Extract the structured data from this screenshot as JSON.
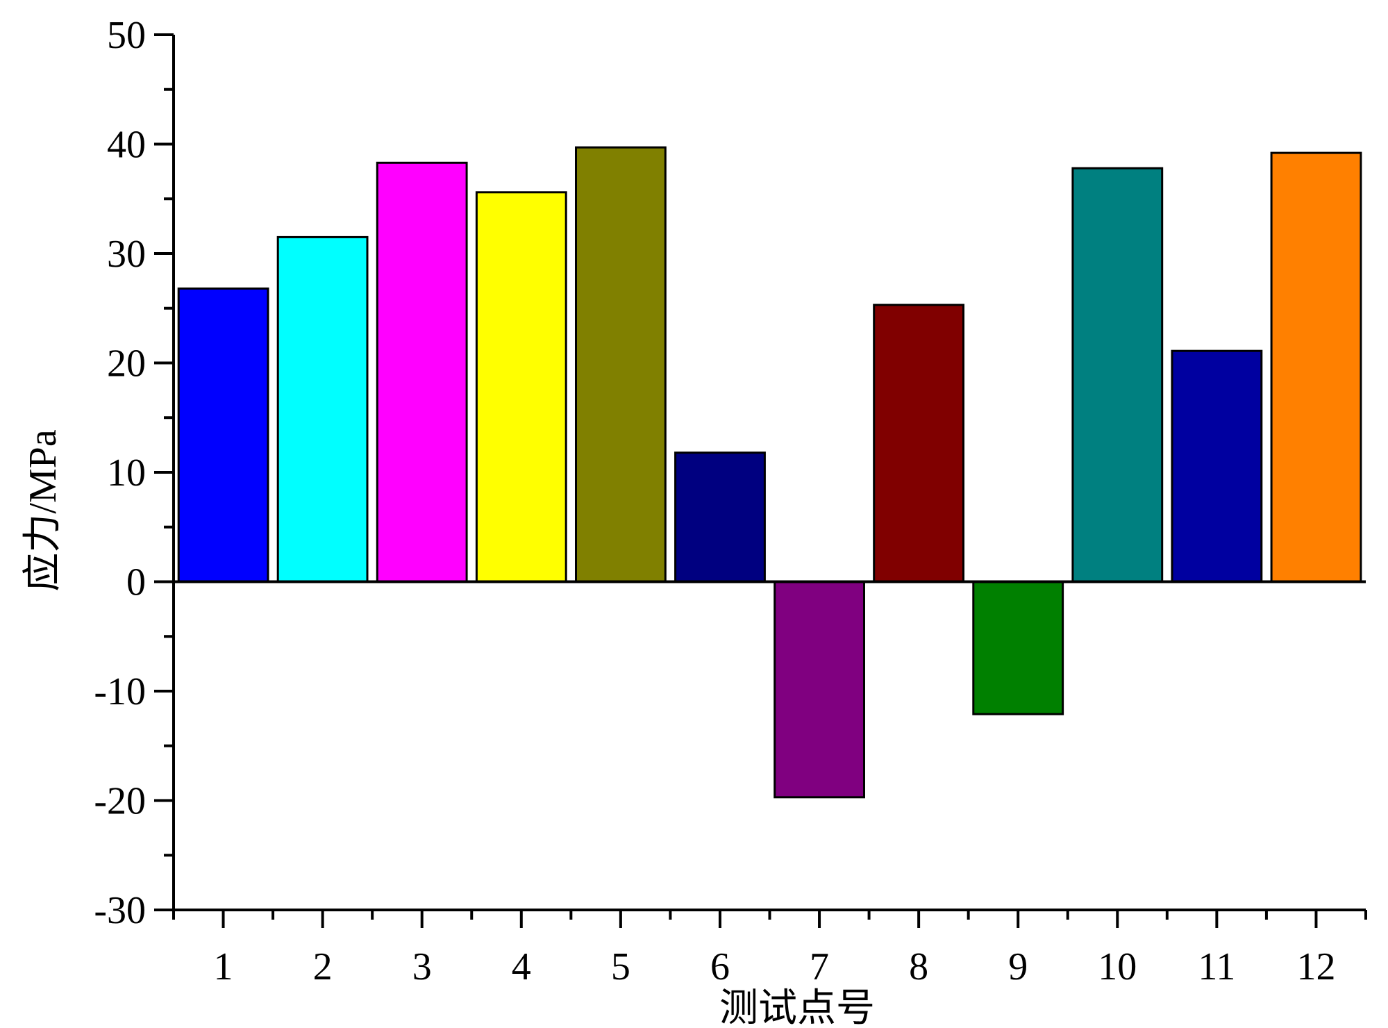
{
  "chart_data": {
    "type": "bar",
    "categories": [
      "1",
      "2",
      "3",
      "4",
      "5",
      "6",
      "7",
      "8",
      "9",
      "10",
      "11",
      "12"
    ],
    "values": [
      26.8,
      31.5,
      38.3,
      35.6,
      39.7,
      11.8,
      -19.7,
      25.3,
      -12.1,
      37.8,
      21.1,
      39.2
    ],
    "colors": [
      "#0000ff",
      "#00ffff",
      "#ff00ff",
      "#ffff00",
      "#808000",
      "#000080",
      "#800080",
      "#800000",
      "#008000",
      "#008080",
      "#0000a0",
      "#ff8000"
    ],
    "xlabel": "测试点号",
    "ylabel": "应力/MPa",
    "ylim": [
      -30,
      50
    ],
    "yticks": [
      "50",
      "40",
      "30",
      "20",
      "10",
      "0",
      "-10",
      "-20",
      "-30"
    ],
    "grid": false,
    "legend": "none"
  }
}
